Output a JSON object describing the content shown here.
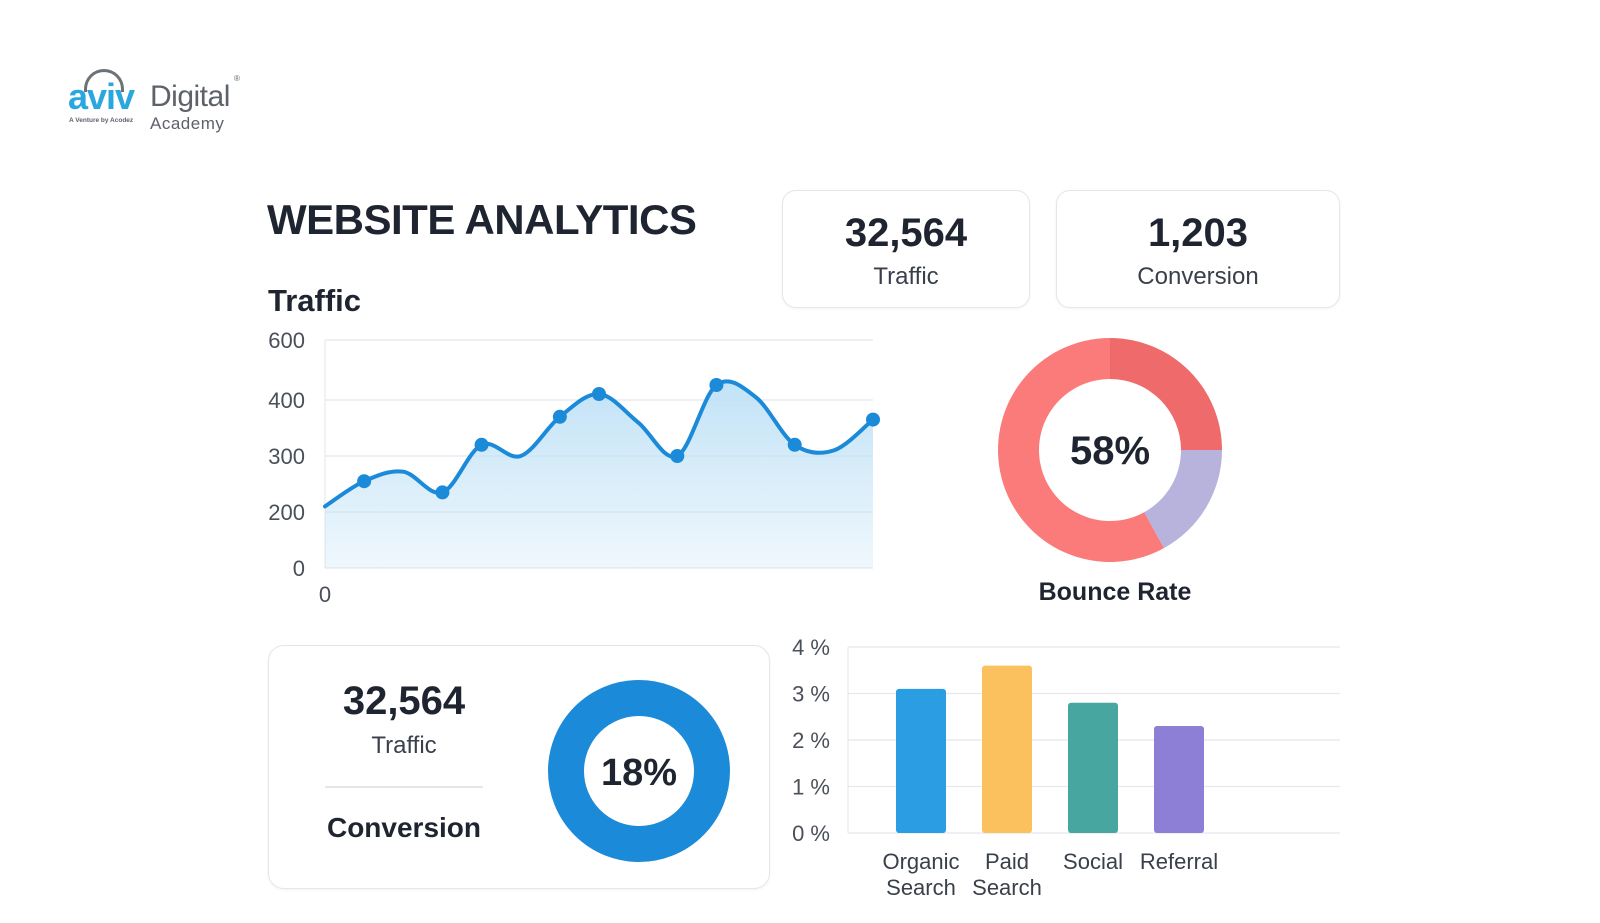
{
  "logo": {
    "brand_primary": "aviv",
    "brand_secondary": "Digital",
    "brand_tertiary": "Academy",
    "tagline": "A Venture by Acodez",
    "registered": "®"
  },
  "page": {
    "title": "WEBSITE ANALYTICS"
  },
  "stat_cards": [
    {
      "value": "32,564",
      "label": "Traffic"
    },
    {
      "value": "1,203",
      "label": "Conversion"
    }
  ],
  "summary_card": {
    "traffic_value": "32,564",
    "traffic_label": "Traffic",
    "conversion_label": "Conversion"
  },
  "colors": {
    "line": "#1b8ad8",
    "area": "#bfe1f6",
    "bounce_segments": [
      "#ef6b6b",
      "#b7b3dd",
      "#fb7b7b"
    ],
    "conversion_donut": "#1b8ad8",
    "bars": [
      "#2b9de3",
      "#fbc15e",
      "#47a7a0",
      "#8e7fd6"
    ]
  },
  "chart_data": [
    {
      "type": "area",
      "title": "Traffic",
      "y_ticks": [
        "600",
        "400",
        "300",
        "200",
        "0"
      ],
      "x_ticks": [
        "0"
      ],
      "grid": true,
      "series": [
        {
          "values": [
            210,
            255,
            272,
            235,
            320,
            300,
            370,
            420,
            360,
            300,
            450,
            410,
            320,
            310,
            365
          ]
        }
      ],
      "markers": [
        1,
        3,
        4,
        6,
        7,
        9,
        10,
        12,
        14
      ]
    },
    {
      "type": "pie",
      "donut": true,
      "center_label": "58%",
      "label": "Bounce Rate",
      "slices": [
        {
          "value": 25
        },
        {
          "value": 17
        },
        {
          "value": 58
        }
      ]
    },
    {
      "type": "pie",
      "donut": true,
      "center_label": "18%",
      "slices": [
        {
          "value": 100
        }
      ]
    },
    {
      "type": "bar",
      "categories": [
        [
          "Organic",
          "Search"
        ],
        [
          "Paid",
          "Search"
        ],
        [
          "Social"
        ],
        [
          "Referral"
        ]
      ],
      "values": [
        3.1,
        3.6,
        2.8,
        2.3
      ],
      "y_ticks": [
        "4 %",
        "3 %",
        "2 %",
        "1 %",
        "0 %"
      ],
      "ylim": [
        0,
        4
      ],
      "grid": true
    }
  ]
}
